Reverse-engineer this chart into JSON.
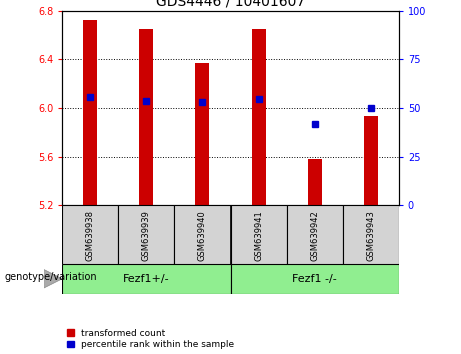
{
  "title": "GDS4446 / 10401607",
  "samples": [
    "GSM639938",
    "GSM639939",
    "GSM639940",
    "GSM639941",
    "GSM639942",
    "GSM639943"
  ],
  "bar_tops": [
    6.72,
    6.65,
    6.37,
    6.65,
    5.58,
    5.93
  ],
  "bar_bottom": 5.2,
  "blue_dot_y": [
    6.09,
    6.06,
    6.05,
    6.07,
    5.87,
    6.0
  ],
  "ylim": [
    5.2,
    6.8
  ],
  "yticks_left": [
    5.2,
    5.6,
    6.0,
    6.4,
    6.8
  ],
  "yticks_right": [
    0,
    25,
    50,
    75,
    100
  ],
  "group1_label": "Fezf1+/-",
  "group2_label": "Fezf1 -/-",
  "bar_color": "#cc0000",
  "dot_color": "#0000cc",
  "legend_red_label": "transformed count",
  "legend_blue_label": "percentile rank within the sample",
  "xlabel_left": "genotype/variation",
  "title_fontsize": 10,
  "tick_fontsize": 7,
  "sample_fontsize": 6,
  "group_fontsize": 8
}
